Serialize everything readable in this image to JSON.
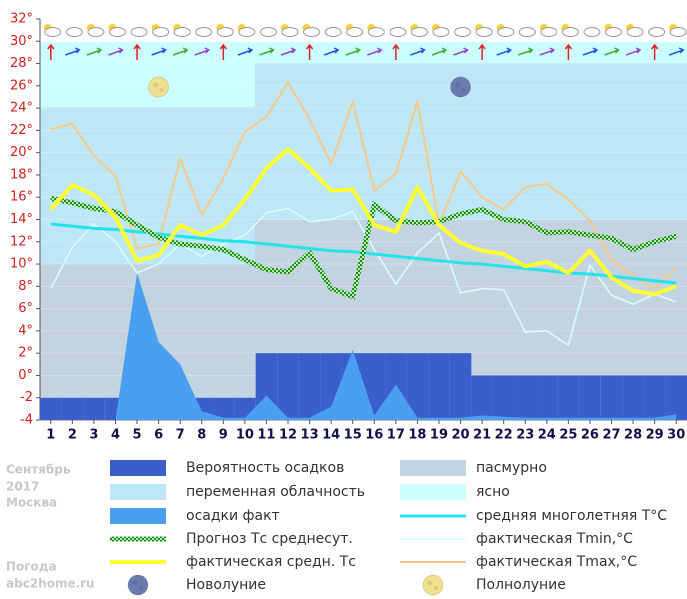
{
  "chart_data": {
    "type": "line",
    "x": [
      1,
      2,
      3,
      4,
      5,
      6,
      7,
      8,
      9,
      10,
      11,
      12,
      13,
      14,
      15,
      16,
      17,
      18,
      19,
      20,
      21,
      22,
      23,
      24,
      25,
      26,
      27,
      28,
      29,
      30
    ],
    "xlim": [
      0.5,
      30.5
    ],
    "ylim": [
      -4,
      32
    ],
    "yticks": [
      -4,
      -2,
      {
        "value": 0,
        "label": "0°"
      },
      {
        "value": 2,
        "label": "2°"
      },
      {
        "value": 4,
        "label": "4°"
      },
      {
        "value": 6,
        "label": "6°"
      },
      {
        "value": 8,
        "label": "8°"
      },
      {
        "value": 10,
        "label": "10°"
      },
      {
        "value": 12,
        "label": "12°"
      },
      {
        "value": 14,
        "label": "14°"
      },
      {
        "value": 16,
        "label": "16°"
      },
      {
        "value": 18,
        "label": "18°"
      },
      {
        "value": 20,
        "label": "20°"
      },
      {
        "value": 22,
        "label": "22°"
      },
      {
        "value": 24,
        "label": "24°"
      },
      {
        "value": 26,
        "label": "26°"
      },
      {
        "value": 28,
        "label": "28°"
      },
      {
        "value": 30,
        "label": "30°"
      },
      {
        "value": 32,
        "label": "32°"
      }
    ],
    "grid": true,
    "series": [
      {
        "name": "Вероятность осадков",
        "kind": "bar",
        "color": "#3a5fcd",
        "values": [
          -2,
          -2,
          -2,
          -2,
          -2,
          -2,
          -2,
          -2,
          -2,
          -2,
          2,
          2,
          2,
          2,
          2,
          2,
          2,
          2,
          2,
          2,
          0,
          0,
          0,
          0,
          0,
          0,
          0,
          0,
          0,
          0
        ]
      },
      {
        "name": "осадки факт",
        "kind": "area",
        "color": "#4a9ff0",
        "values": [
          -4,
          -4,
          -4,
          -4,
          9.2,
          3,
          1,
          -3.2,
          -3.8,
          -3.8,
          -1.8,
          -3.8,
          -3.8,
          -2.8,
          2.3,
          -3.6,
          -0.8,
          -3.8,
          -3.8,
          -3.8,
          -3.6,
          -3.7,
          -3.8,
          -3.8,
          -3.8,
          -3.8,
          -3.8,
          -3.8,
          -3.8,
          -3.5
        ]
      },
      {
        "name": "Прогноз Тс среднесут.",
        "kind": "dotted",
        "color": "#1f8a1f",
        "values": [
          15.9,
          15.5,
          15,
          14.7,
          13.5,
          12.4,
          11.8,
          11.6,
          11.3,
          10.4,
          9.5,
          9.3,
          11,
          7.8,
          7.1,
          15.3,
          13.9,
          13.7,
          13.8,
          14.5,
          14.9,
          14,
          13.8,
          12.8,
          12.9,
          12.6,
          12.3,
          11.3,
          12,
          12.5
        ]
      },
      {
        "name": "фактическая средн. Тс",
        "kind": "line",
        "width": 4,
        "color": "#ffff33",
        "values": [
          14.9,
          17.1,
          16.2,
          14.2,
          10.3,
          10.8,
          13.5,
          12.6,
          13.5,
          15.8,
          18.6,
          20.3,
          18.6,
          16.6,
          16.7,
          13.5,
          12.9,
          16.9,
          13.5,
          11.9,
          11.2,
          10.9,
          9.8,
          10.2,
          9.2,
          11.2,
          8.8,
          7.6,
          7.3,
          8
        ]
      },
      {
        "name": "средняя многолетняя T°C",
        "kind": "line",
        "width": 3,
        "color": "#22e4ea",
        "values": [
          13.6,
          13.4,
          13.2,
          13.1,
          12.9,
          12.7,
          12.5,
          12.3,
          12.1,
          12,
          11.8,
          11.6,
          11.4,
          11.2,
          11.1,
          10.9,
          10.7,
          10.5,
          10.3,
          10.1,
          10,
          9.8,
          9.6,
          9.4,
          9.2,
          9.1,
          8.9,
          8.7,
          8.5,
          8.3
        ]
      },
      {
        "name": "фактическая Tmin,°C",
        "kind": "line",
        "width": 1.5,
        "color": "#d6ffff",
        "values": [
          7.8,
          11.5,
          13.6,
          12,
          9.2,
          10,
          11.8,
          10.7,
          11.8,
          12.6,
          14.6,
          15,
          13.8,
          14,
          14.7,
          11.3,
          8.2,
          11,
          12.8,
          7.4,
          7.8,
          7.7,
          3.9,
          4,
          2.7,
          9.9,
          7.2,
          6.4,
          7.3,
          6.6
        ]
      },
      {
        "name": "фактическая Tmax,°C",
        "kind": "line",
        "width": 2,
        "color": "#f8c888",
        "values": [
          22.1,
          22.6,
          19.7,
          17.9,
          11.4,
          11.8,
          19.5,
          14.4,
          17.7,
          21.9,
          23.2,
          26.3,
          23,
          19,
          24.6,
          16.6,
          18.1,
          24.6,
          13.6,
          18.3,
          16,
          14.9,
          16.9,
          17.2,
          15.8,
          13.9,
          10.4,
          8.9,
          7.8,
          9.7
        ]
      }
    ],
    "zones": [
      {
        "name": "пасмурно",
        "color": "#c4d3e0"
      },
      {
        "name": "переменная облачность",
        "color": "#bde6f6"
      },
      {
        "name": "ясно",
        "color": "#ccffff"
      }
    ],
    "moons": [
      {
        "name": "Новолуние",
        "day": 20,
        "color": "#6a7bb0"
      },
      {
        "name": "Полнолуние",
        "day": 6,
        "color": "#f2e08c"
      }
    ],
    "caption": {
      "month": "Сентябрь",
      "year": "2017",
      "city": "Москва",
      "site_label": "Погода",
      "site": "abc2home.ru"
    }
  }
}
